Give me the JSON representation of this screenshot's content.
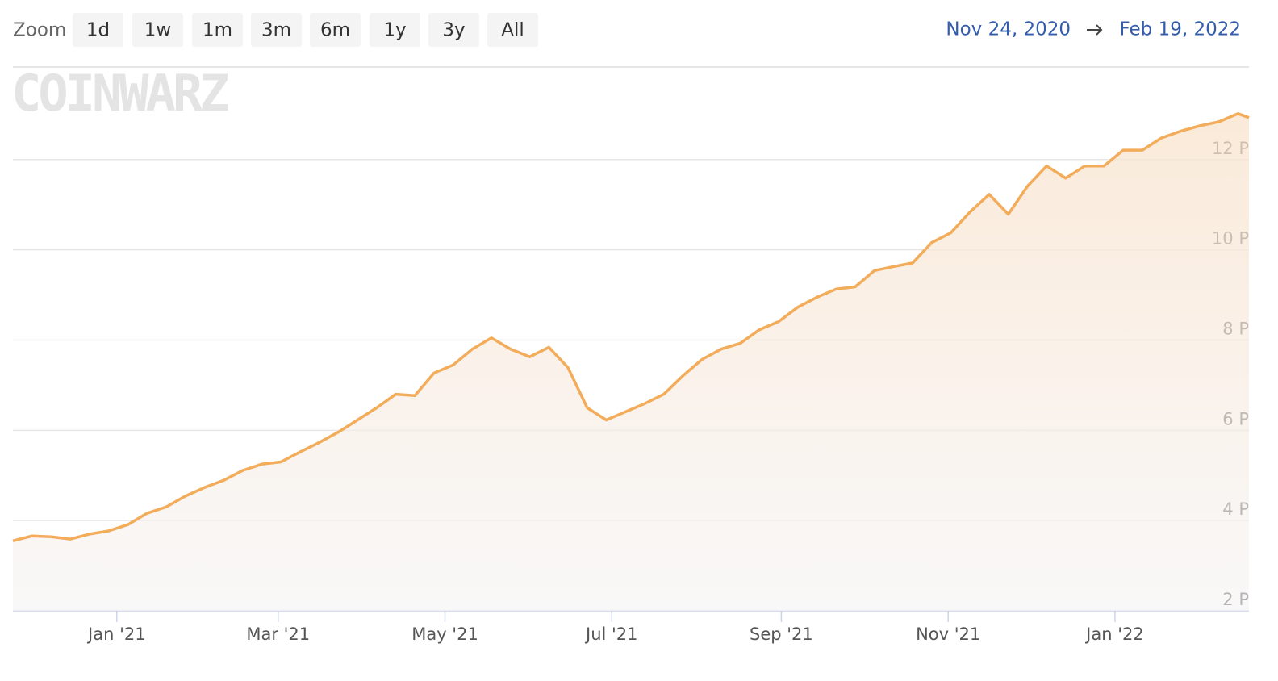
{
  "range_selector": {
    "label": "Zoom",
    "buttons": [
      "1d",
      "1w",
      "1m",
      "3m",
      "6m",
      "1y",
      "3y",
      "All"
    ]
  },
  "date_range": {
    "from": "Nov 24, 2020",
    "to": "Feb 19, 2022"
  },
  "watermark": "COINWARZ",
  "chart_data": {
    "type": "area",
    "color": "#f2ac5a",
    "x": [
      "2020-11-24",
      "2020-12-01",
      "2020-12-08",
      "2020-12-15",
      "2020-12-22",
      "2020-12-29",
      "2021-01-05",
      "2021-01-12",
      "2021-01-19",
      "2021-01-26",
      "2021-02-02",
      "2021-02-09",
      "2021-02-16",
      "2021-02-23",
      "2021-03-02",
      "2021-03-09",
      "2021-03-16",
      "2021-03-23",
      "2021-03-30",
      "2021-04-06",
      "2021-04-13",
      "2021-04-20",
      "2021-04-27",
      "2021-05-04",
      "2021-05-11",
      "2021-05-18",
      "2021-05-25",
      "2021-06-01",
      "2021-06-08",
      "2021-06-15",
      "2021-06-22",
      "2021-06-29",
      "2021-07-06",
      "2021-07-13",
      "2021-07-20",
      "2021-07-27",
      "2021-08-03",
      "2021-08-10",
      "2021-08-17",
      "2021-08-24",
      "2021-08-31",
      "2021-09-07",
      "2021-09-14",
      "2021-09-21",
      "2021-09-28",
      "2021-10-05",
      "2021-10-12",
      "2021-10-19",
      "2021-10-26",
      "2021-11-02",
      "2021-11-09",
      "2021-11-16",
      "2021-11-23",
      "2021-11-30",
      "2021-12-07",
      "2021-12-14",
      "2021-12-21",
      "2021-12-28",
      "2022-01-04",
      "2022-01-11",
      "2022-01-18",
      "2022-01-25",
      "2022-02-01",
      "2022-02-08",
      "2022-02-15",
      "2022-02-19"
    ],
    "values": [
      3.55,
      3.66,
      3.64,
      3.59,
      3.7,
      3.77,
      3.91,
      4.16,
      4.3,
      4.54,
      4.73,
      4.89,
      5.11,
      5.25,
      5.3,
      5.52,
      5.73,
      5.96,
      6.23,
      6.5,
      6.8,
      6.77,
      7.27,
      7.45,
      7.8,
      8.05,
      7.8,
      7.63,
      7.84,
      7.39,
      6.5,
      6.23,
      6.41,
      6.59,
      6.8,
      7.21,
      7.57,
      7.8,
      7.93,
      8.23,
      8.41,
      8.73,
      8.95,
      9.13,
      9.18,
      9.54,
      9.63,
      9.71,
      10.16,
      10.38,
      10.84,
      11.23,
      10.79,
      11.41,
      11.86,
      11.59,
      11.86,
      11.86,
      12.21,
      12.21,
      12.48,
      12.63,
      12.75,
      12.84,
      13.02,
      12.93
    ],
    "xlim": [
      "2020-11-24",
      "2022-02-19"
    ],
    "xticks": [
      {
        "value": "2021-01-01",
        "label": "Jan '21"
      },
      {
        "value": "2021-03-01",
        "label": "Mar '21"
      },
      {
        "value": "2021-05-01",
        "label": "May '21"
      },
      {
        "value": "2021-07-01",
        "label": "Jul '21"
      },
      {
        "value": "2021-09-01",
        "label": "Sep '21"
      },
      {
        "value": "2021-11-01",
        "label": "Nov '21"
      },
      {
        "value": "2022-01-01",
        "label": "Jan '22"
      }
    ],
    "ylim": [
      2,
      14
    ],
    "yticks": [
      {
        "value": 2,
        "label": "2 P"
      },
      {
        "value": 4,
        "label": "4 P"
      },
      {
        "value": 6,
        "label": "6 P"
      },
      {
        "value": 8,
        "label": "8 P"
      },
      {
        "value": 10,
        "label": "10 P"
      },
      {
        "value": 12,
        "label": "12 P"
      }
    ],
    "grid": true
  }
}
